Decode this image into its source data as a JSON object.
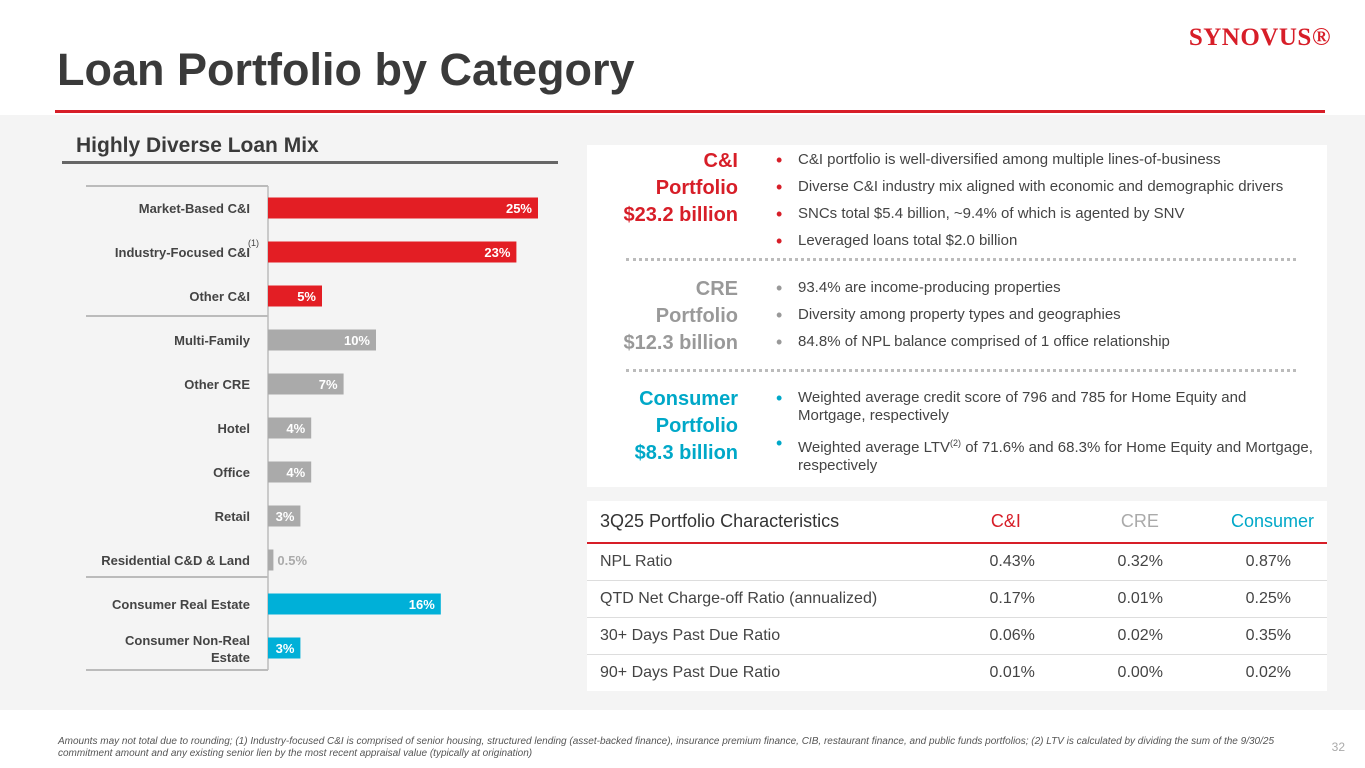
{
  "title": "Loan Portfolio by Category",
  "logo": "SYNOVUS®",
  "subhead": "Highly Diverse Loan Mix",
  "colors": {
    "ci": "#e31e24",
    "cre": "#aaaaaa",
    "consumer": "#00b0d8",
    "brand": "#d71e28"
  },
  "chart_data": {
    "type": "bar",
    "orientation": "horizontal",
    "categories": [
      "Market-Based C&I",
      "Industry-Focused C&I",
      "Other C&I",
      "Multi-Family",
      "Other CRE",
      "Hotel",
      "Office",
      "Retail",
      "Residential C&D & Land",
      "Consumer Real Estate",
      "Consumer Non-Real Estate"
    ],
    "superscripts": [
      "",
      "(1)",
      "",
      "",
      "",
      "",
      "",
      "",
      "",
      "",
      ""
    ],
    "values": [
      25,
      23,
      5,
      10,
      7,
      4,
      4,
      3,
      0.5,
      16,
      3
    ],
    "labels": [
      "25%",
      "23%",
      "5%",
      "10%",
      "7%",
      "4%",
      "4%",
      "3%",
      "0.5%",
      "16%",
      "3%"
    ],
    "groups": [
      "ci",
      "ci",
      "ci",
      "cre",
      "cre",
      "cre",
      "cre",
      "cre",
      "cre",
      "consumer",
      "consumer"
    ],
    "unit": "%"
  },
  "sections": [
    {
      "title_lines": [
        "C&I",
        "Portfolio",
        "$23.2 billion"
      ],
      "color": "#d71e28",
      "bullets": [
        "C&I portfolio is well-diversified among multiple lines-of-business",
        "Diverse C&I industry mix aligned with economic and demographic drivers",
        "SNCs total $5.4 billion, ~9.4% of which is agented by SNV",
        "Leveraged loans total $2.0 billion"
      ]
    },
    {
      "title_lines": [
        "CRE",
        "Portfolio",
        "$12.3 billion"
      ],
      "color": "#999999",
      "bullets": [
        "93.4% are income-producing properties",
        "Diversity among property types and geographies",
        "84.8% of NPL balance comprised of 1 office relationship"
      ]
    },
    {
      "title_lines": [
        "Consumer",
        "Portfolio",
        "$8.3 billion"
      ],
      "color": "#00a8c8",
      "bullets": [
        "Weighted average credit score of 796 and 785 for Home Equity and Mortgage, respectively"
      ],
      "ltv": {
        "pre": "Weighted average LTV",
        "sup": "(2)",
        "post": " of 71.6% and 68.3% for Home Equity and Mortgage, respectively"
      }
    }
  ],
  "table": {
    "headers": [
      "3Q25 Portfolio Characteristics",
      "C&I",
      "CRE",
      "Consumer"
    ],
    "rows": [
      [
        "NPL Ratio",
        "0.43%",
        "0.32%",
        "0.87%"
      ],
      [
        "QTD Net Charge-off Ratio (annualized)",
        "0.17%",
        "0.01%",
        "0.25%"
      ],
      [
        "30+ Days Past Due Ratio",
        "0.06%",
        "0.02%",
        "0.35%"
      ],
      [
        "90+ Days Past Due Ratio",
        "0.01%",
        "0.00%",
        "0.02%"
      ]
    ]
  },
  "footnote": "Amounts may not total due to rounding; (1) Industry-focused C&I is comprised of senior housing, structured lending (asset-backed finance), insurance premium finance, CIB, restaurant finance, and public funds portfolios; (2) LTV is calculated by dividing the sum of the 9/30/25 commitment amount and any existing senior lien by the most recent appraisal value (typically at origination)",
  "page_number": "32"
}
